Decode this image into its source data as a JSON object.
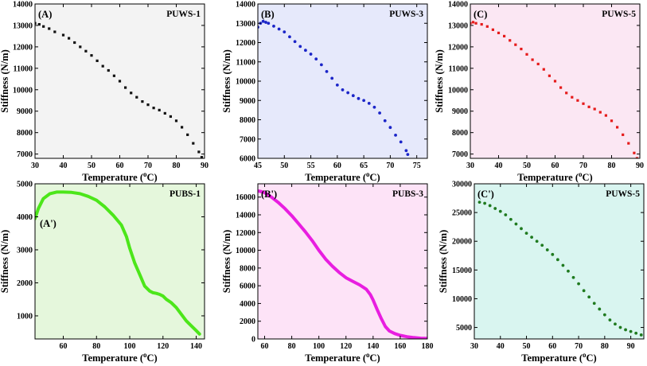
{
  "chart_data": [
    {
      "type": "scatter",
      "panel_label": "(A)",
      "series_name": "PUWS-1",
      "xlabel": "Temperature",
      "xunit": "(oC)",
      "ylabel": "Stiffness (N/m)",
      "xlim": [
        30,
        90
      ],
      "ylim": [
        6800,
        14000
      ],
      "xticks": [
        30,
        40,
        50,
        60,
        70,
        80,
        90
      ],
      "yticks": [
        7000,
        8000,
        9000,
        10000,
        11000,
        12000,
        13000,
        14000
      ],
      "background": "#f3f3f3",
      "color": "#111111",
      "marker": "square",
      "x": [
        30,
        31.5,
        33,
        35,
        37,
        40,
        42,
        44,
        46,
        48,
        50,
        52,
        54,
        56,
        58,
        60,
        62,
        64,
        66,
        68,
        70,
        72,
        74,
        76,
        78,
        80,
        82,
        84,
        86,
        88,
        89
      ],
      "y": [
        13100,
        13050,
        12950,
        12850,
        12700,
        12550,
        12400,
        12200,
        12000,
        11800,
        11600,
        11350,
        11100,
        10900,
        10650,
        10400,
        10100,
        9850,
        9650,
        9450,
        9300,
        9150,
        9050,
        8900,
        8750,
        8550,
        8250,
        7900,
        7500,
        7100,
        6850
      ]
    },
    {
      "type": "scatter",
      "panel_label": "(B)",
      "series_name": "PUWS-3",
      "xlabel": "Temperature",
      "xunit": "(oC)",
      "ylabel": "Stiffness (N/m)",
      "xlim": [
        45,
        77
      ],
      "ylim": [
        6000,
        14000
      ],
      "xticks": [
        45,
        50,
        55,
        60,
        65,
        70,
        75
      ],
      "yticks": [
        6000,
        7000,
        8000,
        9000,
        10000,
        11000,
        12000,
        13000,
        14000
      ],
      "background": "#e6e9fb",
      "color": "#1b25c8",
      "marker": "circle",
      "x": [
        45,
        45.5,
        46,
        46.5,
        47,
        48,
        49,
        50,
        51,
        52,
        53,
        54,
        55,
        56,
        57,
        58,
        59,
        60,
        61,
        62,
        63,
        64,
        65,
        66,
        67,
        68,
        69,
        70,
        71,
        72,
        73,
        73.3
      ],
      "y": [
        12800,
        13000,
        13100,
        13050,
        13000,
        12850,
        12700,
        12550,
        12300,
        12050,
        11800,
        11600,
        11400,
        11150,
        10850,
        10500,
        10150,
        9800,
        9550,
        9400,
        9250,
        9100,
        9000,
        8850,
        8650,
        8350,
        7950,
        7600,
        7200,
        6850,
        6400,
        6200
      ]
    },
    {
      "type": "scatter",
      "panel_label": "(C)",
      "series_name": "PUWS-5",
      "xlabel": "Temperature",
      "xunit": "(oC)",
      "ylabel": "Stiffness (N/m)",
      "xlim": [
        30,
        90
      ],
      "ylim": [
        6800,
        14000
      ],
      "xticks": [
        30,
        40,
        50,
        60,
        70,
        80,
        90
      ],
      "yticks": [
        7000,
        8000,
        9000,
        10000,
        11000,
        12000,
        13000,
        14000
      ],
      "background": "#fbe7f3",
      "color": "#e51b1b",
      "marker": "square",
      "x": [
        30,
        31,
        32,
        34,
        36,
        38,
        40,
        42,
        44,
        46,
        48,
        50,
        52,
        54,
        56,
        58,
        60,
        62,
        64,
        66,
        68,
        70,
        72,
        74,
        76,
        78,
        80,
        82,
        84,
        86,
        88,
        89
      ],
      "y": [
        13100,
        13150,
        13100,
        13050,
        12950,
        12800,
        12650,
        12500,
        12300,
        12100,
        11900,
        11650,
        11400,
        11200,
        10950,
        10650,
        10400,
        10100,
        9850,
        9650,
        9500,
        9350,
        9200,
        9100,
        8950,
        8800,
        8550,
        8250,
        7900,
        7500,
        7050,
        6800
      ]
    },
    {
      "type": "line",
      "panel_label": "(A')",
      "series_name": "PUBS-1",
      "xlabel": "Temperature",
      "xunit": "(oC)",
      "ylabel": "Stiffness (N/m)",
      "xlim": [
        43,
        145
      ],
      "ylim": [
        300,
        5000
      ],
      "xticks": [
        60,
        80,
        100,
        120,
        140
      ],
      "yticks": [
        1000,
        2000,
        3000,
        4000,
        5000
      ],
      "background": "#e5f7dc",
      "color": "#4ce61a",
      "line_width": 4,
      "x": [
        43,
        45,
        48,
        52,
        56,
        60,
        65,
        70,
        75,
        80,
        85,
        90,
        95,
        98,
        100,
        103,
        106,
        109,
        112,
        114,
        116,
        118,
        120,
        122,
        125,
        128,
        131,
        134,
        137,
        140,
        142
      ],
      "y": [
        3950,
        4250,
        4550,
        4700,
        4750,
        4750,
        4740,
        4700,
        4620,
        4500,
        4300,
        4050,
        3750,
        3400,
        3050,
        2600,
        2250,
        1900,
        1750,
        1700,
        1680,
        1650,
        1600,
        1500,
        1400,
        1250,
        1050,
        850,
        700,
        550,
        450
      ]
    },
    {
      "type": "line",
      "panel_label": "(B')",
      "series_name": "PUBS-3",
      "xlabel": "Temperature",
      "xunit": "(oC)",
      "ylabel": "Stiffness (N/m)",
      "xlim": [
        55,
        180
      ],
      "ylim": [
        0,
        17500
      ],
      "xticks": [
        60,
        80,
        100,
        120,
        140,
        160,
        180
      ],
      "yticks": [
        0,
        2000,
        4000,
        6000,
        8000,
        10000,
        12000,
        14000,
        16000
      ],
      "background": "#fde3f7",
      "color": "#e81ee0",
      "line_width": 4,
      "x": [
        55,
        58,
        60,
        65,
        70,
        75,
        80,
        85,
        90,
        95,
        100,
        105,
        110,
        115,
        120,
        125,
        130,
        135,
        138,
        140,
        143,
        146,
        149,
        152,
        156,
        160,
        165,
        170,
        175,
        180
      ],
      "y": [
        16700,
        16600,
        16500,
        16000,
        15400,
        14700,
        13900,
        13000,
        12100,
        11100,
        10000,
        9000,
        8200,
        7500,
        6900,
        6500,
        6100,
        5600,
        5000,
        4400,
        3300,
        2300,
        1400,
        900,
        600,
        400,
        250,
        150,
        80,
        50
      ]
    },
    {
      "type": "scatter",
      "panel_label": "(C')",
      "series_name": "PUWS-5",
      "xlabel": "Temperature",
      "xunit": "(oC)",
      "ylabel": "Stiffness (N/m)",
      "xlim": [
        30,
        95
      ],
      "ylim": [
        3000,
        30000
      ],
      "xticks": [
        30,
        40,
        50,
        60,
        70,
        80,
        90
      ],
      "yticks": [
        5000,
        10000,
        15000,
        20000,
        25000,
        30000
      ],
      "background": "#d9f5f0",
      "color": "#1f7a1f",
      "marker": "circle",
      "x": [
        32,
        34,
        36,
        38,
        40,
        42,
        44,
        46,
        48,
        50,
        52,
        54,
        56,
        58,
        60,
        62,
        64,
        66,
        68,
        70,
        72,
        74,
        76,
        78,
        80,
        82,
        84,
        86,
        88,
        90,
        92,
        94
      ],
      "y": [
        26800,
        26600,
        26200,
        25700,
        25200,
        24600,
        23800,
        23000,
        22200,
        21400,
        20700,
        20000,
        19300,
        18500,
        17700,
        16800,
        15800,
        14800,
        13700,
        12600,
        11400,
        10300,
        9200,
        8200,
        7200,
        6300,
        5600,
        5000,
        4600,
        4300,
        4000,
        3700
      ]
    }
  ]
}
